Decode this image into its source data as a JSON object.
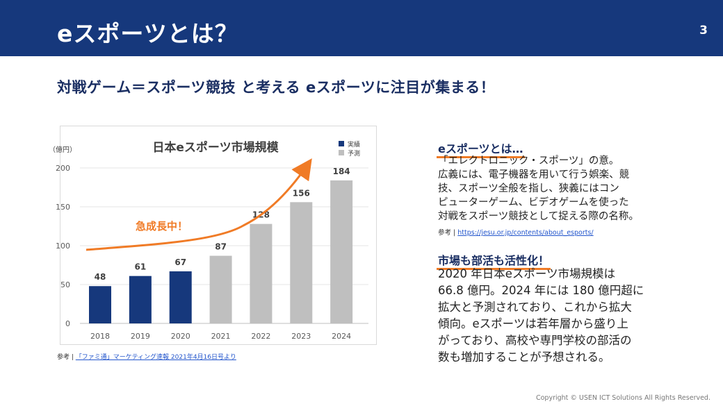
{
  "header": {
    "title": "eスポーツとは？",
    "page_number": "3",
    "background": "#16387c"
  },
  "subtitle": "対戦ゲーム＝スポーツ競技 と考える eスポーツに注目が集まる！",
  "chart_data": {
    "type": "bar",
    "title": "日本eスポーツ市場規模",
    "ylabel": "（億円）",
    "xlabel": "",
    "ylim": [
      0,
      200
    ],
    "yticks": [
      0,
      50,
      100,
      150,
      200
    ],
    "categories": [
      "2018",
      "2019",
      "2020",
      "2021",
      "2022",
      "2023",
      "2024"
    ],
    "values": [
      48,
      61,
      67,
      87,
      128,
      156,
      184
    ],
    "bar_types": [
      "actual",
      "actual",
      "actual",
      "forecast",
      "forecast",
      "forecast",
      "forecast"
    ],
    "series": [
      {
        "name": "実績",
        "color": "#16387c"
      },
      {
        "name": "予測",
        "color": "#bfbfbf"
      }
    ],
    "legend_position": "top-right",
    "grid": true,
    "annotation": {
      "text": "急成長中！",
      "color": "#f07b26"
    }
  },
  "source": {
    "label": "参考 |",
    "link_text": "「ファミ通」マーケティング速報 2021年4月16日号より"
  },
  "section1": {
    "heading": "eスポーツとは…",
    "lines": [
      "「エレクトロニック・スポーツ」の意。",
      "広義には、電子機器を用いて行う娯楽、競",
      "技、スポーツ全般を指し、狭義にはコン",
      "ピューターゲーム、ビデオゲームを使った",
      "対戦をスポーツ競技として捉える際の名称。"
    ],
    "ref_label": "参考 |",
    "ref_link": "https://jesu.or.jp/contents/about_esports/"
  },
  "section2": {
    "heading": "市場も部活も活性化！",
    "lines": [
      "2020 年日本eスポーツ市場規模は",
      "66.8 億円。2024 年には 180 億円超に",
      "拡大と予測されており、これから拡大",
      "傾向。eスポーツは若年層から盛り上",
      "がっており、高校や専門学校の部活の",
      "数も増加することが予想される。"
    ]
  },
  "accent_color": "#f07b26",
  "copyright": "Copyright © USEN ICT Solutions All Rights Reserved."
}
